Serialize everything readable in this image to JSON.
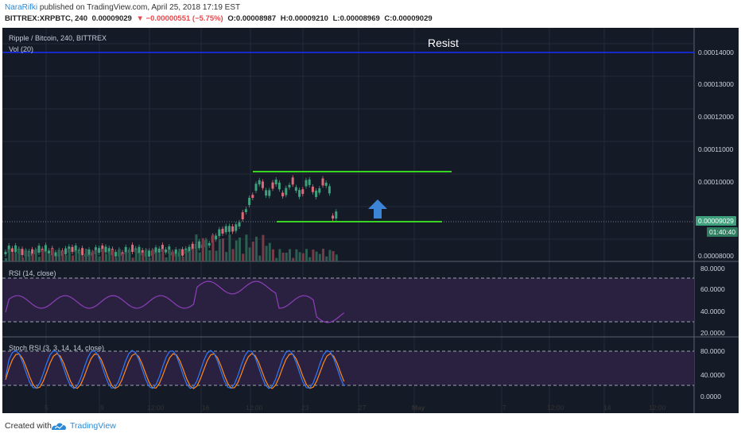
{
  "header": {
    "author": "NaraRifki",
    "published_text": "published on TradingView.com, April 25, 2018 17:19 EST",
    "symbol": "BITTREX:XRPBTC, 240",
    "last": "0.00009029",
    "change": "▼ −0.00000551 (−5.75%)",
    "open": "O:0.00008987",
    "high": "H:0.00009210",
    "low": "L:0.00008969",
    "close": "C:0.00009029"
  },
  "chart": {
    "title": "Ripple / Bitcoin, 240, BITTREX",
    "vol_label": "Vol (20)",
    "annotation": "Resist",
    "price_ticks": [
      "0.00014000",
      "0.00013000",
      "0.00012000",
      "0.00011000",
      "0.00010000",
      "0.00008000"
    ],
    "last_price_tag": "0.00009029",
    "countdown_tag": "01:40:40",
    "rsi_label": "RSI (14, close)",
    "rsi_ticks": [
      "80.0000",
      "60.0000",
      "40.0000",
      "20.0000"
    ],
    "stoch_label": "Stoch RSI (3, 3, 14, 14, close)",
    "stoch_ticks": [
      "80.0000",
      "40.0000",
      "0.0000"
    ],
    "x_ticks": [
      "5",
      "9",
      "12:00",
      "16",
      "12:00",
      "23",
      "27",
      "May",
      "7",
      "12:00",
      "14",
      "12:00"
    ],
    "colors": {
      "background": "#141a26",
      "resist_line": "#1a2eff",
      "support_lines": "#39d323",
      "arrow": "#3c85d6",
      "up_candle": "#3fa07d",
      "down_candle": "#e06b78",
      "rsi_line": "#8d3fb8",
      "stoch_k": "#3179f5",
      "stoch_d": "#ff8a1f"
    }
  },
  "footer": {
    "created_with": "Created with",
    "brand": "TradingView"
  }
}
